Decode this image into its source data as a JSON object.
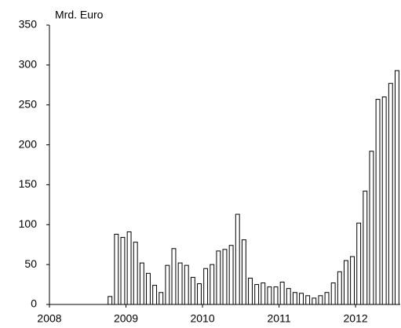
{
  "chart_data": {
    "type": "bar",
    "y_label": "Mrd. Euro",
    "categories": [
      "2008",
      null,
      null,
      null,
      null,
      null,
      null,
      null,
      null,
      null,
      null,
      null,
      "2009",
      null,
      null,
      null,
      null,
      null,
      null,
      null,
      null,
      null,
      null,
      null,
      "2010",
      null,
      null,
      null,
      null,
      null,
      null,
      null,
      null,
      null,
      null,
      null,
      "2011",
      null,
      null,
      null,
      null,
      null,
      null,
      null,
      null,
      null,
      null,
      null,
      "2012",
      null,
      null,
      null,
      null,
      null,
      null
    ],
    "values": [
      0,
      0,
      0,
      0,
      0,
      0,
      0,
      0,
      0,
      10,
      88,
      84,
      91,
      78,
      52,
      39,
      24,
      15,
      49,
      70,
      52,
      49,
      34,
      26,
      45,
      50,
      67,
      69,
      74,
      113,
      81,
      33,
      25,
      27,
      22,
      22,
      28,
      20,
      15,
      14,
      11,
      8,
      11,
      15,
      27,
      41,
      55,
      60,
      102,
      142,
      192,
      257,
      260,
      277,
      293
    ],
    "color": "#ffffff",
    "ylim": [
      0,
      350
    ],
    "yticks": [
      0,
      50,
      100,
      150,
      200,
      250,
      300,
      350
    ],
    "grid": false
  }
}
